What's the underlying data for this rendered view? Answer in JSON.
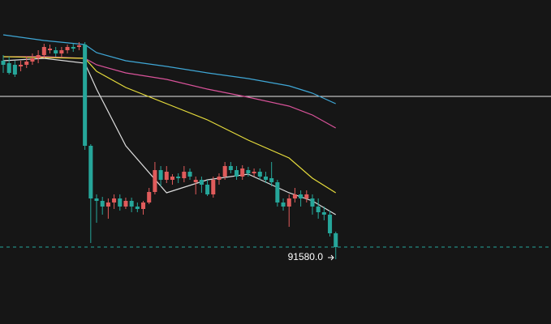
{
  "chart_data": {
    "type": "candlestick",
    "background": "#161616",
    "up_color": "#e05b5b",
    "down_color": "#26a69a",
    "xlim": [
      -0.556,
      93.9
    ],
    "ylim": [
      91105,
      93105
    ],
    "open": [
      92730,
      92715,
      92705,
      92695,
      92705,
      92725,
      92745,
      92765,
      92795,
      92795,
      92775,
      92795,
      92815,
      92815,
      92830,
      92205,
      91880,
      91865,
      91830,
      91855,
      91880,
      91830,
      91865,
      91830,
      91815,
      91855,
      91920,
      92055,
      91995,
      91995,
      92015,
      92005,
      92045,
      91980,
      91995,
      91965,
      91905,
      91995,
      92015,
      92080,
      92055,
      92015,
      92055,
      92035,
      92045,
      92015,
      92005,
      91980,
      91855,
      91830,
      91880,
      91905,
      91880,
      91880,
      91830,
      91795,
      91780,
      91665
    ],
    "high": [
      92765,
      92755,
      92730,
      92730,
      92755,
      92775,
      92795,
      92835,
      92830,
      92815,
      92815,
      92830,
      92835,
      92845,
      92845,
      92215,
      91905,
      91890,
      91880,
      91905,
      91905,
      91885,
      91885,
      91855,
      91865,
      91945,
      92105,
      92080,
      92080,
      92030,
      92035,
      92080,
      92065,
      92015,
      92015,
      91995,
      92015,
      92035,
      92105,
      92105,
      92080,
      92085,
      92075,
      92065,
      92065,
      92045,
      92105,
      91995,
      91880,
      91905,
      91945,
      91930,
      91930,
      91905,
      91880,
      91830,
      91805,
      91675
    ],
    "low": [
      92655,
      92645,
      92630,
      92665,
      92685,
      92705,
      92715,
      92745,
      92775,
      92755,
      92755,
      92775,
      92785,
      92795,
      92180,
      91605,
      91730,
      91780,
      91755,
      91815,
      91805,
      91815,
      91795,
      91795,
      91780,
      91845,
      91905,
      91955,
      91975,
      91965,
      91975,
      91980,
      91995,
      91905,
      91915,
      91895,
      91885,
      91965,
      91995,
      92035,
      91995,
      91995,
      92015,
      92015,
      91995,
      91975,
      91955,
      91830,
      91805,
      91705,
      91855,
      91830,
      91855,
      91780,
      91755,
      91745,
      91645,
      91505
    ],
    "close": [
      92705,
      92655,
      92645,
      92705,
      92725,
      92745,
      92765,
      92815,
      92805,
      92775,
      92795,
      92815,
      92805,
      92825,
      92205,
      91880,
      91865,
      91830,
      91855,
      91880,
      91830,
      91865,
      91830,
      91815,
      91855,
      91920,
      92055,
      91995,
      92045,
      92015,
      92005,
      92045,
      92015,
      91995,
      91965,
      91905,
      91995,
      92015,
      92080,
      92055,
      92015,
      92065,
      92035,
      92045,
      92015,
      91995,
      91980,
      91855,
      91830,
      91880,
      91905,
      91880,
      91905,
      91830,
      91795,
      91780,
      91665,
      91580
    ],
    "lines": [
      {
        "color": "#3fa7d6",
        "x": [
          0,
          7,
          14,
          16,
          21,
          28,
          35,
          42,
          49,
          53,
          57
        ],
        "values": [
          92890,
          92855,
          92830,
          92780,
          92730,
          92695,
          92655,
          92620,
          92575,
          92530,
          92465
        ]
      },
      {
        "color": "#d9539a",
        "x": [
          0,
          7,
          14,
          16,
          21,
          28,
          35,
          42,
          49,
          53,
          57
        ],
        "values": [
          92755,
          92755,
          92745,
          92705,
          92655,
          92615,
          92555,
          92505,
          92450,
          92395,
          92315
        ]
      },
      {
        "color": "#e6dc3c",
        "x": [
          0,
          7,
          14,
          16,
          21,
          28,
          35,
          42,
          49,
          53,
          57
        ],
        "values": [
          92755,
          92750,
          92745,
          92665,
          92565,
          92465,
          92365,
          92240,
          92130,
          92005,
          91915
        ]
      },
      {
        "color": "#dddddd",
        "x": [
          0,
          7,
          14,
          16,
          21,
          28,
          35,
          42,
          49,
          53,
          57
        ],
        "values": [
          92730,
          92745,
          92715,
          92555,
          92205,
          91915,
          91995,
          92030,
          91915,
          91865,
          91780
        ]
      }
    ],
    "hline": {
      "value": 92510,
      "color": "#e8e8e8"
    },
    "last_price": {
      "value": 91580,
      "label": "91580.0",
      "color": "#26a69a"
    }
  }
}
